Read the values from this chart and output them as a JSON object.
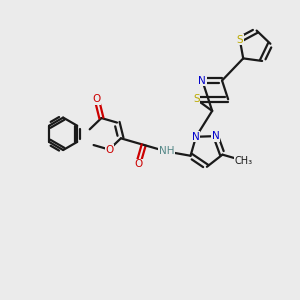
{
  "background_color": "#ebebeb",
  "bond_color": "#1a1a1a",
  "oxygen_color": "#cc0000",
  "nitrogen_color": "#0000cc",
  "sulfur_color": "#bbaa00",
  "hydrogen_color": "#558888",
  "line_width": 1.6,
  "figsize": [
    3.0,
    3.0
  ],
  "dpi": 100,
  "xlim": [
    0,
    10
  ],
  "ylim": [
    0,
    10
  ]
}
